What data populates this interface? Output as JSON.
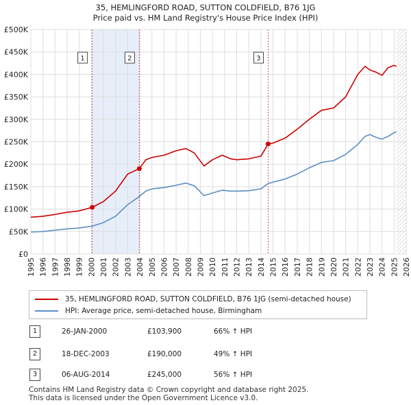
{
  "header": {
    "title_line1": "35, HEMLINGFORD ROAD, SUTTON COLDFIELD, B76 1JG",
    "title_line2": "Price paid vs. HM Land Registry's House Price Index (HPI)"
  },
  "legend": {
    "entries": [
      {
        "label": "35, HEMLINGFORD ROAD, SUTTON COLDFIELD, B76 1JG (semi-detached house)",
        "color": "#cc0000"
      },
      {
        "label": "HPI: Average price, semi-detached house, Birmingham",
        "color": "#5b8ec4"
      }
    ]
  },
  "sales": [
    {
      "marker": "1",
      "date": "26-JAN-2000",
      "price": "£103,900",
      "hpi": "66% ↑ HPI"
    },
    {
      "marker": "2",
      "date": "18-DEC-2003",
      "price": "£190,000",
      "hpi": "49% ↑ HPI"
    },
    {
      "marker": "3",
      "date": "06-AUG-2014",
      "price": "£245,000",
      "hpi": "56% ↑ HPI"
    }
  ],
  "footer": {
    "line1": "Contains HM Land Registry data © Crown copyright and database right 2025.",
    "line2": "This data is licensed under the Open Government Licence v3.0."
  },
  "chart_data": {
    "type": "line",
    "title": "35, HEMLINGFORD ROAD, SUTTON COLDFIELD, B76 1JG",
    "subtitle": "Price paid vs. HM Land Registry's House Price Index (HPI)",
    "xlabel": "",
    "ylabel": "",
    "xlim": [
      1995,
      2026
    ],
    "ylim": [
      0,
      500000
    ],
    "x_ticks": [
      "1995",
      "1996",
      "1997",
      "1998",
      "1999",
      "2000",
      "2001",
      "2002",
      "2003",
      "2004",
      "2005",
      "2006",
      "2007",
      "2008",
      "2009",
      "2010",
      "2011",
      "2012",
      "2013",
      "2014",
      "2015",
      "2016",
      "2017",
      "2018",
      "2019",
      "2020",
      "2021",
      "2022",
      "2023",
      "2024",
      "2025",
      "2026"
    ],
    "y_ticks": [
      {
        "value": 0,
        "label": "£0"
      },
      {
        "value": 50000,
        "label": "£50K"
      },
      {
        "value": 100000,
        "label": "£100K"
      },
      {
        "value": 150000,
        "label": "£150K"
      },
      {
        "value": 200000,
        "label": "£200K"
      },
      {
        "value": 250000,
        "label": "£250K"
      },
      {
        "value": 300000,
        "label": "£300K"
      },
      {
        "value": 350000,
        "label": "£350K"
      },
      {
        "value": 400000,
        "label": "£400K"
      },
      {
        "value": 450000,
        "label": "£450K"
      },
      {
        "value": 500000,
        "label": "£500K"
      }
    ],
    "grid": true,
    "shaded_ranges": [
      [
        2000.07,
        2003.96
      ],
      [
        2014.6,
        2014.6
      ]
    ],
    "data_end": 2025.2,
    "series": [
      {
        "name": "35, HEMLINGFORD ROAD, SUTTON COLDFIELD, B76 1JG (semi-detached house)",
        "color": "#cc0000",
        "x": [
          1995.0,
          1996.0,
          1997.0,
          1998.0,
          1999.0,
          2000.07,
          2001.0,
          2002.0,
          2003.0,
          2003.96,
          2004.5,
          2005.0,
          2006.0,
          2007.0,
          2007.8,
          2008.5,
          2009.3,
          2010.0,
          2010.8,
          2011.5,
          2012.0,
          2013.0,
          2014.0,
          2014.6,
          2015.0,
          2016.0,
          2017.0,
          2018.0,
          2019.0,
          2020.0,
          2021.0,
          2022.0,
          2022.6,
          2023.0,
          2023.5,
          2024.0,
          2024.5,
          2025.0,
          2025.2
        ],
        "values": [
          82000,
          84000,
          88000,
          93000,
          96000,
          103900,
          117000,
          140000,
          178000,
          190000,
          210000,
          215000,
          220000,
          230000,
          235000,
          225000,
          196000,
          210000,
          220000,
          212000,
          210000,
          212000,
          218000,
          245000,
          247000,
          258000,
          278000,
          300000,
          320000,
          325000,
          350000,
          400000,
          418000,
          410000,
          405000,
          398000,
          415000,
          420000,
          418000
        ]
      },
      {
        "name": "HPI: Average price, semi-detached house, Birmingham",
        "color": "#5b8ec4",
        "x": [
          1995.0,
          1996.0,
          1997.0,
          1998.0,
          1999.0,
          2000.07,
          2001.0,
          2002.0,
          2003.0,
          2003.96,
          2004.5,
          2005.0,
          2006.0,
          2007.0,
          2007.8,
          2008.5,
          2009.3,
          2010.0,
          2010.8,
          2011.5,
          2012.0,
          2013.0,
          2014.0,
          2014.6,
          2015.0,
          2016.0,
          2017.0,
          2018.0,
          2019.0,
          2020.0,
          2021.0,
          2022.0,
          2022.6,
          2023.0,
          2023.5,
          2024.0,
          2024.5,
          2025.0,
          2025.2
        ],
        "values": [
          49000,
          50000,
          53000,
          56000,
          58000,
          62000,
          70000,
          84000,
          110000,
          128000,
          140000,
          145000,
          148000,
          153000,
          158000,
          152000,
          130000,
          136000,
          142000,
          140000,
          140000,
          141000,
          145000,
          157000,
          160000,
          167000,
          178000,
          192000,
          204000,
          208000,
          222000,
          244000,
          262000,
          266000,
          260000,
          256000,
          262000,
          270000,
          272000
        ]
      }
    ],
    "annotations": [
      {
        "label": "1",
        "x": 2000.07,
        "value": 103900
      },
      {
        "label": "2",
        "x": 2003.96,
        "value": 190000
      },
      {
        "label": "3",
        "x": 2014.6,
        "value": 245000
      }
    ]
  }
}
